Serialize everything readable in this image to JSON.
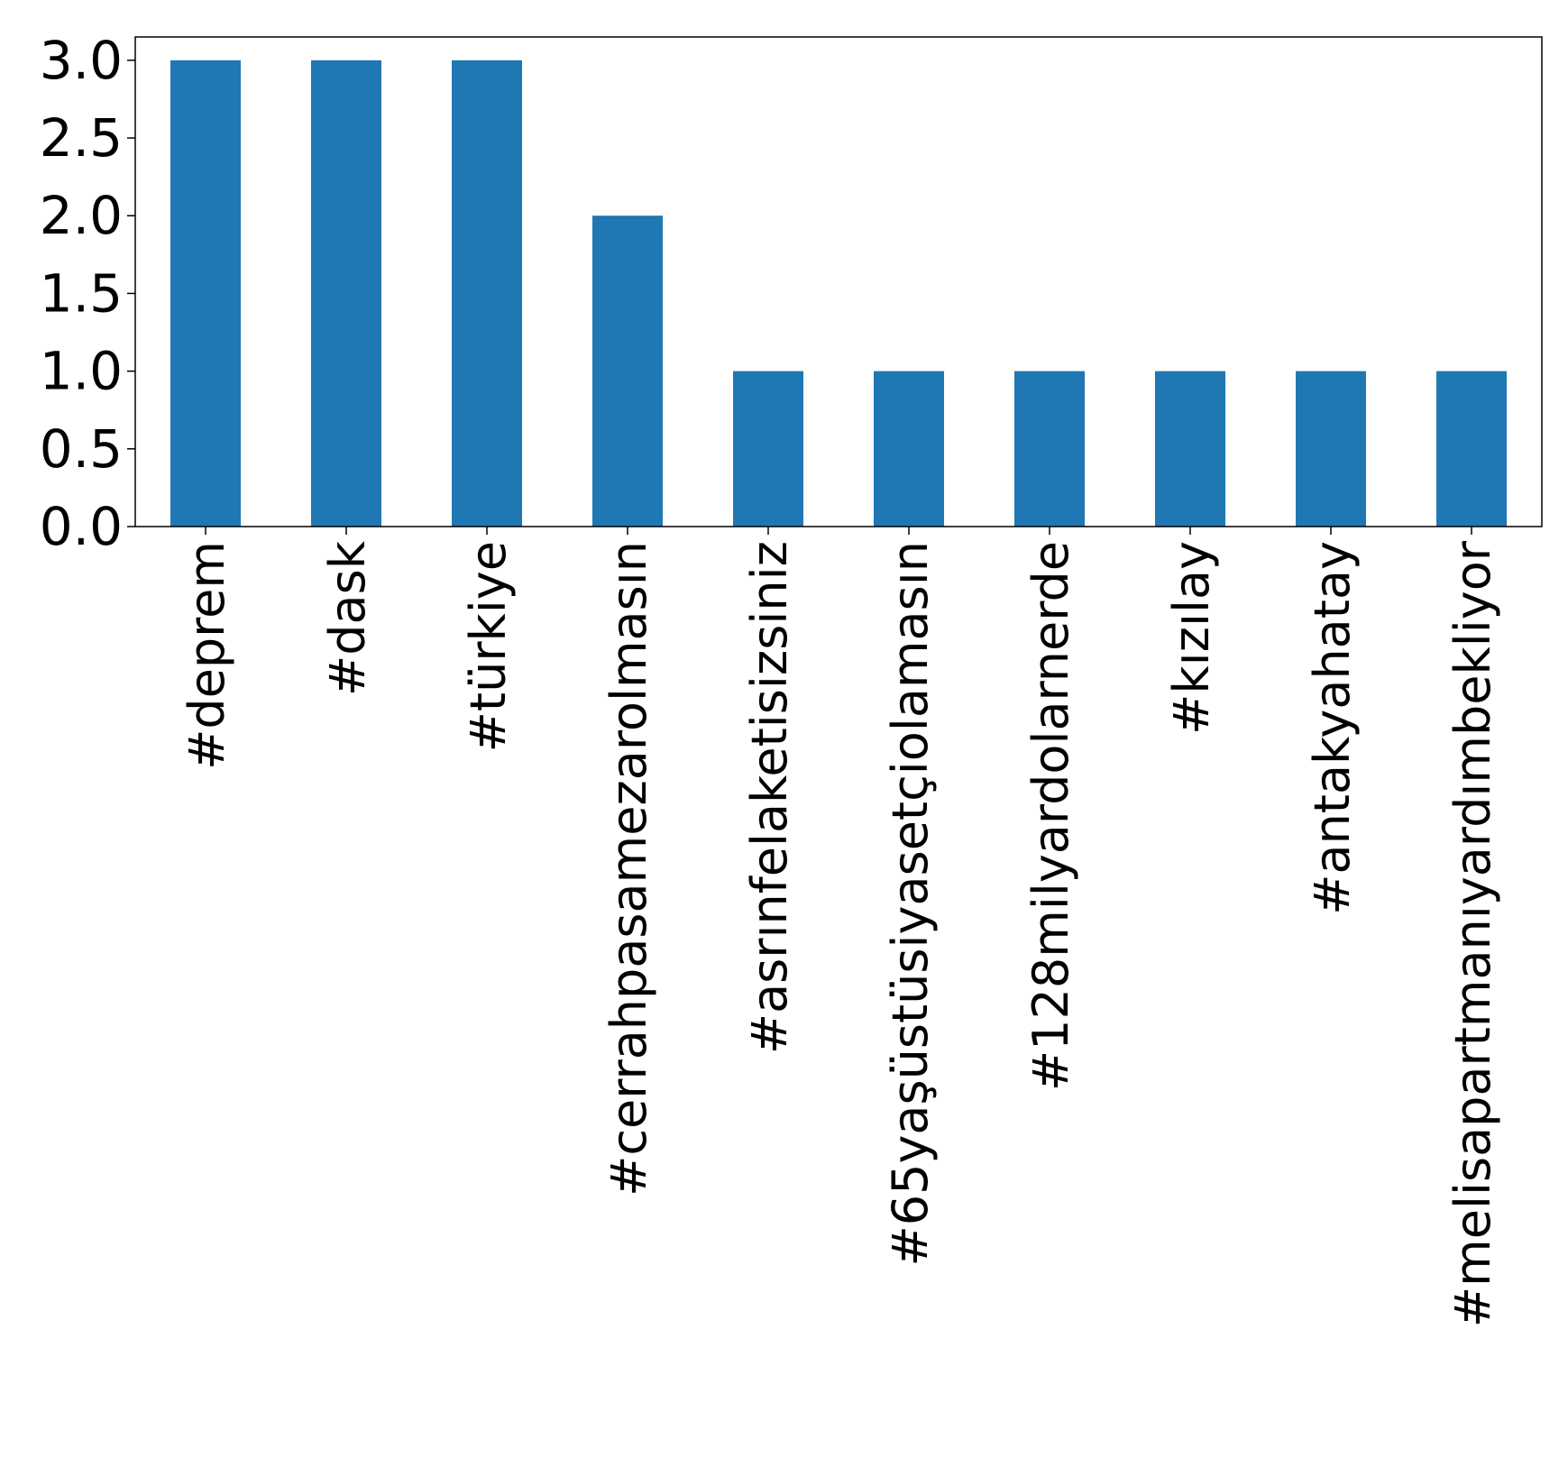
{
  "chart_data": {
    "type": "bar",
    "title": "",
    "xlabel": "",
    "ylabel": "",
    "categories": [
      "#deprem",
      "#dask",
      "#türkiye",
      "#cerrahpasamezarolmasın",
      "#asrınfelaketisizsiniz",
      "#65yaşüstüsiyasetçiolamasın",
      "#128milyardolarnerde",
      "#kızılay",
      "#antakyahatay",
      "#melisapartmanıyardımbekliyor"
    ],
    "values": [
      3,
      3,
      3,
      2,
      1,
      1,
      1,
      1,
      1,
      1
    ],
    "ylim": [
      0,
      3.15
    ],
    "yticks": [
      0.0,
      0.5,
      1.0,
      1.5,
      2.0,
      2.5,
      3.0
    ],
    "ytick_labels": [
      "0.0",
      "0.5",
      "1.0",
      "1.5",
      "2.0",
      "2.5",
      "3.0"
    ],
    "grid": false,
    "bar_color": "#1f77b4"
  }
}
